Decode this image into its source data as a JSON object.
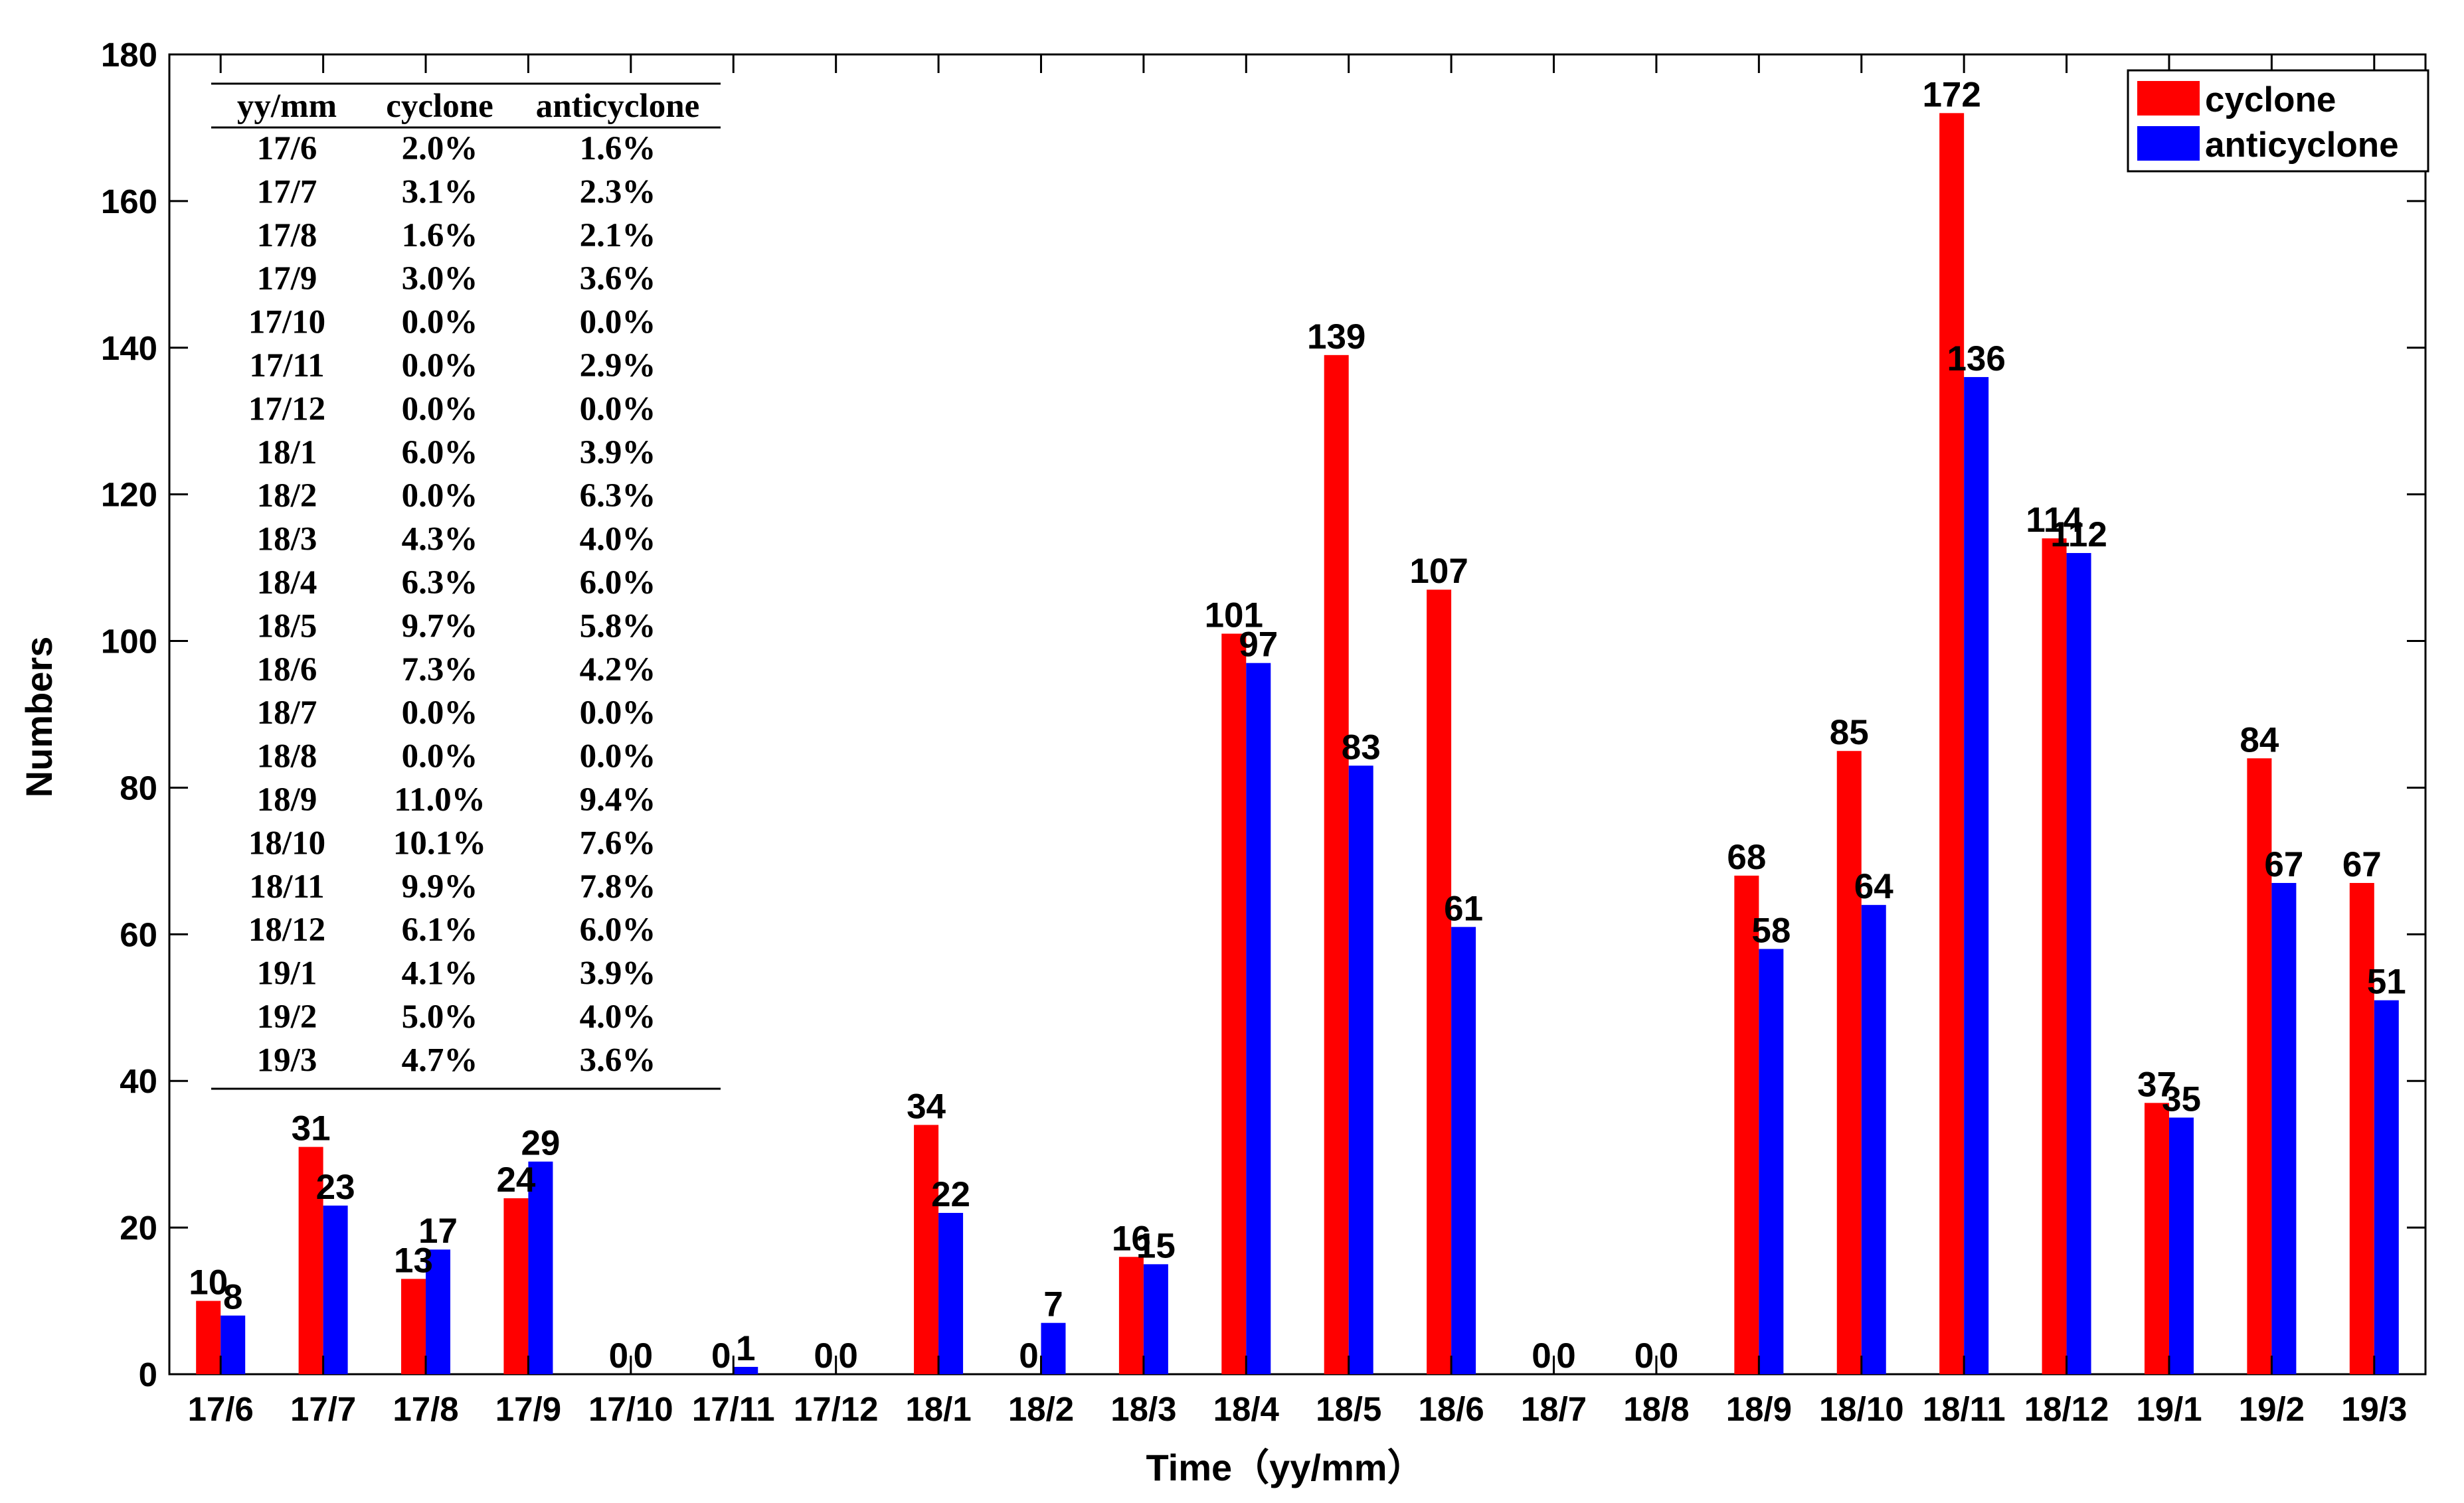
{
  "chart_data": {
    "type": "bar",
    "title": "",
    "xlabel": "Time（yy/mm）",
    "ylabel": "Numbers",
    "ylim": [
      0,
      180
    ],
    "yticks": [
      0,
      20,
      40,
      60,
      80,
      100,
      120,
      140,
      160,
      180
    ],
    "grid": false,
    "legend_position": "top-right",
    "categories": [
      "17/6",
      "17/7",
      "17/8",
      "17/9",
      "17/10",
      "17/11",
      "17/12",
      "18/1",
      "18/2",
      "18/3",
      "18/4",
      "18/5",
      "18/6",
      "18/7",
      "18/8",
      "18/9",
      "18/10",
      "18/11",
      "18/12",
      "19/1",
      "19/2",
      "19/3"
    ],
    "series": [
      {
        "name": "cyclone",
        "color": "#ff0000",
        "values": [
          10,
          31,
          13,
          24,
          0,
          0,
          0,
          34,
          0,
          16,
          101,
          139,
          107,
          0,
          0,
          68,
          85,
          172,
          114,
          37,
          84,
          67
        ]
      },
      {
        "name": "anticyclone",
        "color": "#0000ff",
        "values": [
          8,
          23,
          17,
          29,
          0,
          1,
          0,
          22,
          7,
          15,
          97,
          83,
          61,
          0,
          0,
          58,
          64,
          136,
          112,
          35,
          67,
          51
        ]
      }
    ],
    "inset_table": {
      "headers": [
        "yy/mm",
        "cyclone",
        "anticyclone"
      ],
      "rows": [
        [
          "17/6",
          "2.0%",
          "1.6%"
        ],
        [
          "17/7",
          "3.1%",
          "2.3%"
        ],
        [
          "17/8",
          "1.6%",
          "2.1%"
        ],
        [
          "17/9",
          "3.0%",
          "3.6%"
        ],
        [
          "17/10",
          "0.0%",
          "0.0%"
        ],
        [
          "17/11",
          "0.0%",
          "2.9%"
        ],
        [
          "17/12",
          "0.0%",
          "0.0%"
        ],
        [
          "18/1",
          "6.0%",
          "3.9%"
        ],
        [
          "18/2",
          "0.0%",
          "6.3%"
        ],
        [
          "18/3",
          "4.3%",
          "4.0%"
        ],
        [
          "18/4",
          "6.3%",
          "6.0%"
        ],
        [
          "18/5",
          "9.7%",
          "5.8%"
        ],
        [
          "18/6",
          "7.3%",
          "4.2%"
        ],
        [
          "18/7",
          "0.0%",
          "0.0%"
        ],
        [
          "18/8",
          "0.0%",
          "0.0%"
        ],
        [
          "18/9",
          "11.0%",
          "9.4%"
        ],
        [
          "18/10",
          "10.1%",
          "7.6%"
        ],
        [
          "18/11",
          "9.9%",
          "7.8%"
        ],
        [
          "18/12",
          "6.1%",
          "6.0%"
        ],
        [
          "19/1",
          "4.1%",
          "3.9%"
        ],
        [
          "19/2",
          "5.0%",
          "4.0%"
        ],
        [
          "19/3",
          "4.7%",
          "3.6%"
        ]
      ]
    }
  }
}
